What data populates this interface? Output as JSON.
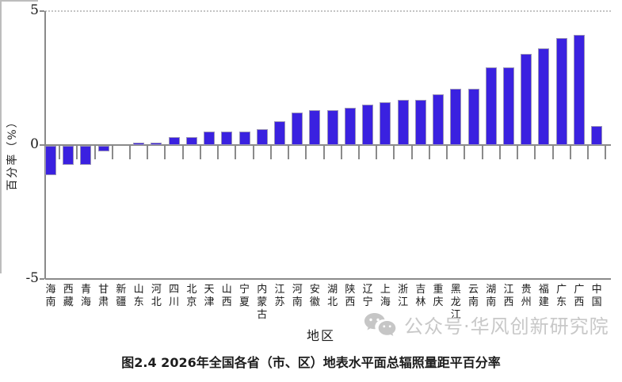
{
  "page": {
    "caption": "图2.4 2026年全国各省（市、区）地表水平面总辐照量距平百分率",
    "watermark_text": "公众号·华风创新研究院",
    "watermark_color": "#c8c8c8"
  },
  "chart_data": {
    "type": "bar",
    "title": "",
    "xlabel": "地区",
    "ylabel": "百分率（%）",
    "ylim": [
      -5,
      5
    ],
    "yticks": [
      5,
      0,
      -5
    ],
    "grid": "dotted gridline at y=5; solid baseline at y=-5; solid zero line with category boundary ticks",
    "legend": "none",
    "bar_color": "#3a21e0",
    "categories": [
      "海南",
      "西藏",
      "青海",
      "甘肃",
      "新疆",
      "山东",
      "河北",
      "四川",
      "北京",
      "天津",
      "山西",
      "宁夏",
      "内蒙古",
      "江苏",
      "河南",
      "安徽",
      "湖北",
      "陕西",
      "辽宁",
      "上海",
      "浙江",
      "吉林",
      "重庆",
      "黑龙江",
      "云南",
      "湖南",
      "江西",
      "贵州",
      "福建",
      "广东",
      "广西",
      "中国"
    ],
    "values": [
      -1.1,
      -0.7,
      -0.7,
      -0.2,
      0.0,
      0.1,
      0.1,
      0.3,
      0.3,
      0.5,
      0.5,
      0.5,
      0.6,
      0.9,
      1.2,
      1.3,
      1.3,
      1.4,
      1.5,
      1.6,
      1.7,
      1.7,
      1.9,
      2.1,
      2.1,
      2.9,
      2.9,
      3.4,
      3.6,
      4.0,
      4.1,
      0.7
    ]
  }
}
